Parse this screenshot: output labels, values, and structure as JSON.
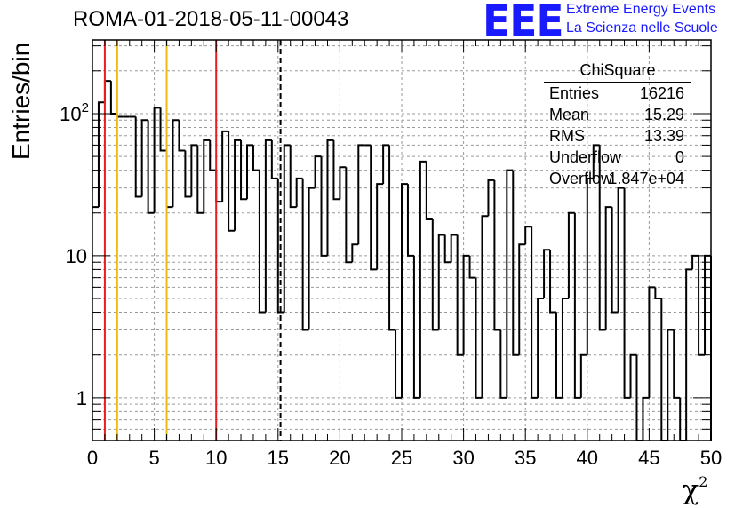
{
  "title": "ROMA-01-2018-05-11-00043",
  "logo": {
    "mark": "EEE",
    "line1": "Extreme Energy Events",
    "line2": "La Scienza nelle Scuole",
    "color": "#1a1aff"
  },
  "stats": {
    "title": "ChiSquare",
    "rows": [
      {
        "key": "Entries",
        "value": "16216"
      },
      {
        "key": "Mean",
        "value": "15.29"
      },
      {
        "key": "RMS",
        "value": "13.39"
      },
      {
        "key": "Underflow",
        "value": "0"
      },
      {
        "key": "Overflow",
        "value": "1.847e+04"
      }
    ]
  },
  "chart_data": {
    "type": "bar",
    "style": "step-histogram",
    "xlabel": "χ",
    "xlabel_sup": "2",
    "ylabel": "Entries/bin",
    "xlim": [
      0,
      50
    ],
    "ylim": [
      0.5,
      330
    ],
    "yscale": "log",
    "grid": true,
    "bin_width": 0.5,
    "x_ticks": [
      0,
      5,
      10,
      15,
      20,
      25,
      30,
      35,
      40,
      45,
      50
    ],
    "y_ticks": [
      {
        "value": 1,
        "label": "1"
      },
      {
        "value": 10,
        "label": "10"
      },
      {
        "value": 100,
        "label": "10",
        "sup": "2"
      }
    ],
    "values": [
      22,
      120,
      170,
      100,
      95,
      95,
      95,
      26,
      90,
      20,
      110,
      55,
      22,
      90,
      55,
      26,
      60,
      20,
      65,
      40,
      24,
      75,
      15,
      65,
      25,
      60,
      40,
      4,
      65,
      35,
      4,
      60,
      22,
      35,
      3,
      30,
      50,
      10,
      65,
      25,
      42,
      9,
      12,
      60,
      60,
      8,
      32,
      60,
      3,
      1,
      32,
      10,
      1,
      46,
      18,
      3,
      14,
      9,
      14,
      2,
      10,
      7,
      1,
      19,
      34,
      3,
      1,
      40,
      2,
      12,
      16,
      1,
      5,
      11,
      4,
      1,
      5,
      20,
      1,
      2,
      35,
      60,
      3,
      22,
      4,
      30,
      1,
      2,
      0.4,
      1,
      6,
      5,
      0.4,
      3,
      1,
      0.4,
      8,
      10,
      2,
      10
    ],
    "vlines": [
      {
        "x": 1,
        "color": "#e81e1e",
        "style": "solid"
      },
      {
        "x": 2,
        "color": "#f0b810",
        "style": "solid"
      },
      {
        "x": 6,
        "color": "#f0b810",
        "style": "solid"
      },
      {
        "x": 10,
        "color": "#e81e1e",
        "style": "solid"
      },
      {
        "x": 15.2,
        "color": "#000000",
        "style": "dashed"
      }
    ]
  }
}
